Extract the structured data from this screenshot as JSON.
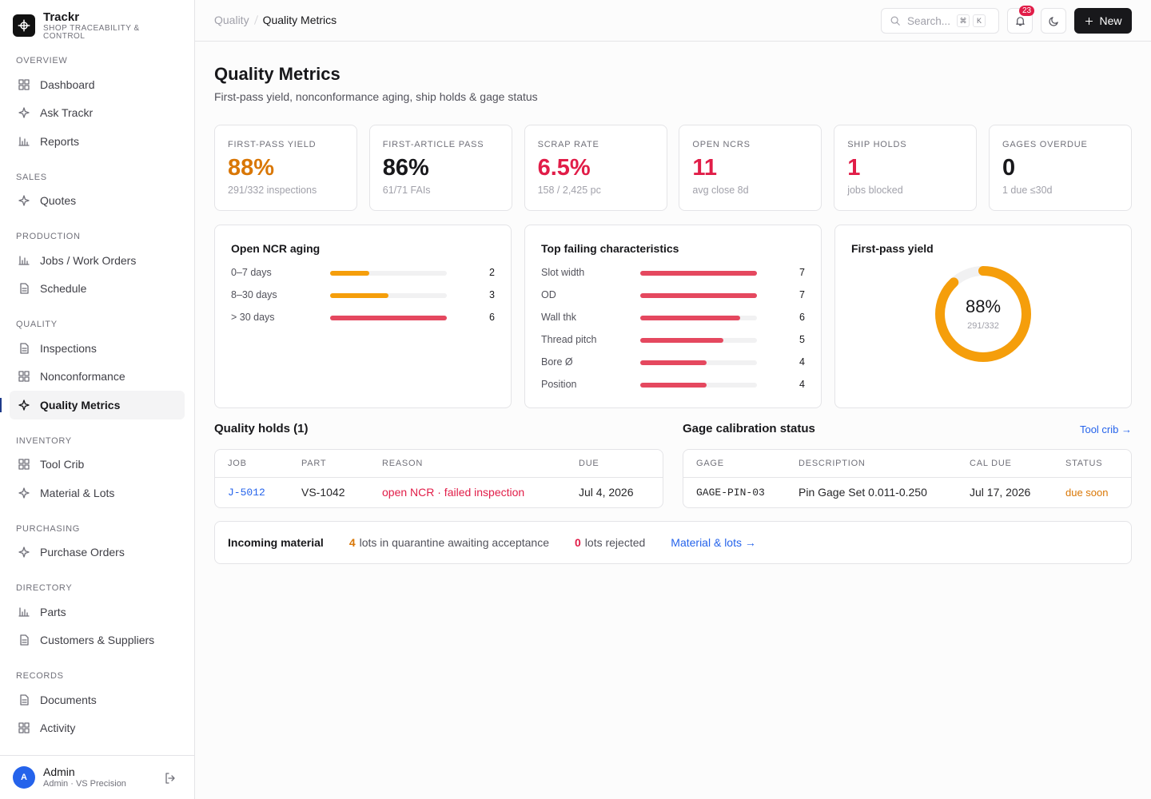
{
  "sidebar": {
    "brand": {
      "name": "Trackr",
      "tagline": "SHOP TRACEABILITY & CONTROL"
    },
    "sections": [
      {
        "title": "OVERVIEW",
        "items": [
          "Dashboard",
          "Ask Trackr",
          "Reports"
        ]
      },
      {
        "title": "SALES",
        "items": [
          "Quotes"
        ]
      },
      {
        "title": "PRODUCTION",
        "items": [
          "Jobs / Work Orders",
          "Schedule"
        ]
      },
      {
        "title": "QUALITY",
        "items": [
          "Inspections",
          "Nonconformance",
          "Quality Metrics"
        ]
      },
      {
        "title": "INVENTORY",
        "items": [
          "Tool Crib",
          "Material & Lots"
        ]
      },
      {
        "title": "PURCHASING",
        "items": [
          "Purchase Orders"
        ]
      },
      {
        "title": "DIRECTORY",
        "items": [
          "Parts",
          "Customers & Suppliers"
        ]
      },
      {
        "title": "RECORDS",
        "items": [
          "Documents",
          "Activity"
        ]
      }
    ],
    "user": {
      "avatar": "A",
      "name": "Admin",
      "role": "Admin · VS Precision"
    }
  },
  "topbar": {
    "breadcrumb": [
      "Quality",
      "Quality Metrics"
    ],
    "search_placeholder": "Search...",
    "shortcut": [
      "⌘",
      "K"
    ],
    "notification_count": 23,
    "new_button": "New"
  },
  "header": {
    "title": "Quality Metrics",
    "subtitle": "First-pass yield, nonconformance aging, ship holds & gage status"
  },
  "kpis": [
    {
      "label": "FIRST-PASS YIELD",
      "value": "88%",
      "detail": "291/332 inspections",
      "color": "#d97706"
    },
    {
      "label": "FIRST-ARTICLE PASS",
      "value": "86%",
      "detail": "61/71 FAIs",
      "color": "#18181b"
    },
    {
      "label": "SCRAP RATE",
      "value": "6.5%",
      "detail": "158 / 2,425 pc",
      "color": "#e11d48"
    },
    {
      "label": "OPEN NCRS",
      "value": "11",
      "detail": "avg close 8d",
      "color": "#e11d48"
    },
    {
      "label": "SHIP HOLDS",
      "value": "1",
      "detail": "jobs blocked",
      "color": "#e11d48"
    },
    {
      "label": "GAGES OVERDUE",
      "value": "0",
      "detail": "1 due ≤30d",
      "color": "#18181b"
    }
  ],
  "ncr_aging": {
    "title": "Open NCR aging",
    "categories": [
      "0–7 days",
      "8–30 days",
      "> 30 days"
    ],
    "values": [
      2,
      3,
      6
    ],
    "colors": [
      "#f59e0b",
      "#f59e0b",
      "#e5485f"
    ]
  },
  "top_failing": {
    "title": "Top failing characteristics",
    "categories": [
      "Slot width",
      "OD",
      "Wall thk",
      "Thread pitch",
      "Bore Ø",
      "Position"
    ],
    "values": [
      7,
      7,
      6,
      5,
      4,
      4
    ],
    "color": "#e5485f"
  },
  "first_pass_yield": {
    "title": "First-pass yield",
    "value": 88,
    "value_label": "88%",
    "detail": "291/332",
    "color": "#f59e0b"
  },
  "quality_holds": {
    "title": "Quality holds (1)",
    "columns": [
      "JOB",
      "PART",
      "REASON",
      "DUE"
    ],
    "rows": [
      [
        "J-5012",
        "VS-1042",
        "open NCR · failed inspection",
        "Jul 4, 2026"
      ]
    ]
  },
  "gage_calibration": {
    "title": "Gage calibration status",
    "link": "Tool crib →",
    "columns": [
      "GAGE",
      "DESCRIPTION",
      "CAL DUE",
      "STATUS"
    ],
    "rows": [
      [
        "GAGE-PIN-03",
        "Pin Gage Set 0.011-0.250",
        "Jul 17, 2026",
        "due soon"
      ]
    ]
  },
  "incoming_material": {
    "title": "Incoming material",
    "quarantine_count": 4,
    "quarantine_text": "lots in quarantine awaiting acceptance",
    "rejected_count": 0,
    "rejected_text": "lots rejected",
    "link": "Material & lots →"
  }
}
